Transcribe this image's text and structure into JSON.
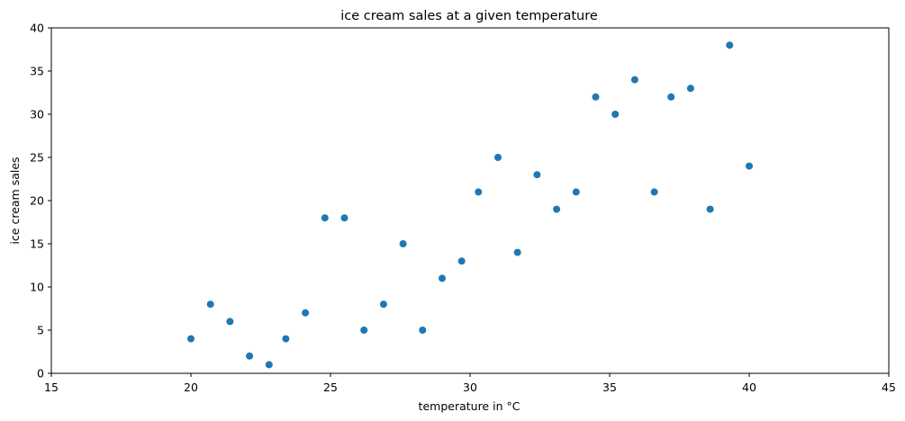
{
  "chart_data": {
    "type": "scatter",
    "title": "ice cream sales at a given temperature",
    "xlabel": "temperature in °C",
    "ylabel": "ice cream sales",
    "xlim": [
      15,
      45
    ],
    "ylim": [
      0,
      40
    ],
    "xticks": [
      "15",
      "20",
      "25",
      "30",
      "35",
      "40",
      "45"
    ],
    "yticks": [
      "0",
      "5",
      "10",
      "15",
      "20",
      "25",
      "30",
      "35",
      "40"
    ],
    "grid": false,
    "marker_color": "#1f77b4",
    "points": [
      {
        "x": 20.0,
        "y": 4
      },
      {
        "x": 20.7,
        "y": 8
      },
      {
        "x": 21.4,
        "y": 6
      },
      {
        "x": 22.1,
        "y": 2
      },
      {
        "x": 22.8,
        "y": 1
      },
      {
        "x": 23.4,
        "y": 4
      },
      {
        "x": 24.1,
        "y": 7
      },
      {
        "x": 24.8,
        "y": 18
      },
      {
        "x": 25.5,
        "y": 18
      },
      {
        "x": 26.2,
        "y": 5
      },
      {
        "x": 26.9,
        "y": 8
      },
      {
        "x": 27.6,
        "y": 15
      },
      {
        "x": 28.3,
        "y": 5
      },
      {
        "x": 29.0,
        "y": 11
      },
      {
        "x": 29.7,
        "y": 13
      },
      {
        "x": 30.3,
        "y": 21
      },
      {
        "x": 31.0,
        "y": 25
      },
      {
        "x": 31.7,
        "y": 14
      },
      {
        "x": 32.4,
        "y": 23
      },
      {
        "x": 33.1,
        "y": 19
      },
      {
        "x": 33.8,
        "y": 21
      },
      {
        "x": 34.5,
        "y": 32
      },
      {
        "x": 35.2,
        "y": 30
      },
      {
        "x": 35.9,
        "y": 34
      },
      {
        "x": 36.6,
        "y": 21
      },
      {
        "x": 37.2,
        "y": 32
      },
      {
        "x": 37.9,
        "y": 33
      },
      {
        "x": 38.6,
        "y": 19
      },
      {
        "x": 39.3,
        "y": 38
      },
      {
        "x": 40.0,
        "y": 24
      }
    ]
  }
}
